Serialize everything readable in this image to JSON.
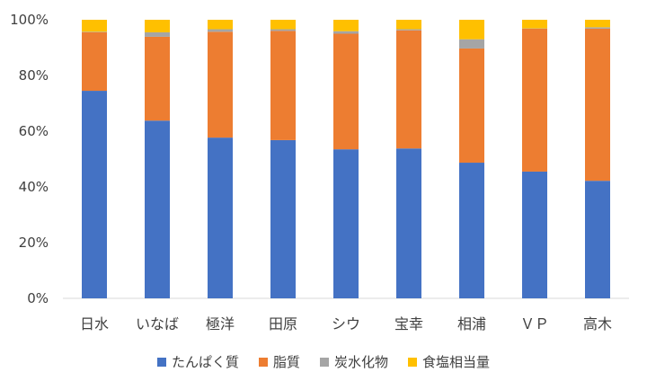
{
  "chart_data": {
    "type": "bar",
    "stacked": true,
    "percent": true,
    "title": "",
    "xlabel": "",
    "ylabel": "",
    "ylim": [
      0,
      100
    ],
    "ytick_labels": [
      "0%",
      "20%",
      "40%",
      "60%",
      "80%",
      "100%"
    ],
    "grid": false,
    "legend_position": "bottom",
    "categories": [
      "日水",
      "いなば",
      "極洋",
      "田原",
      "シウ",
      "宝幸",
      "相浦",
      "ＶＰ",
      "高木"
    ],
    "series": [
      {
        "name": "たんぱく質",
        "color": "#4472C4",
        "values": [
          74.5,
          63.8,
          57.7,
          56.8,
          53.5,
          53.8,
          48.7,
          45.5,
          42.2
        ]
      },
      {
        "name": "脂質",
        "color": "#ED7D31",
        "values": [
          21.0,
          30.1,
          38.0,
          39.2,
          41.5,
          42.4,
          41.0,
          51.3,
          54.6
        ]
      },
      {
        "name": "炭水化物",
        "color": "#A5A5A5",
        "values": [
          0.2,
          1.6,
          0.9,
          0.6,
          0.9,
          0.4,
          3.3,
          0.1,
          0.5
        ]
      },
      {
        "name": "食塩相当量",
        "color": "#FFC000",
        "values": [
          4.3,
          4.5,
          3.4,
          3.4,
          4.1,
          3.4,
          7.0,
          3.1,
          2.7
        ]
      }
    ]
  }
}
